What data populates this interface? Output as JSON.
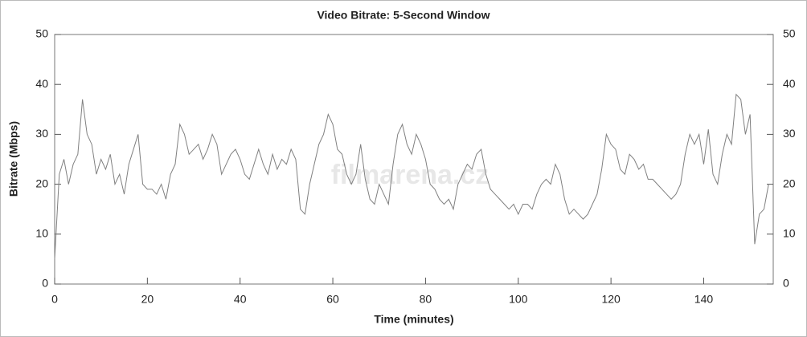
{
  "chart_data": {
    "type": "line",
    "title": "Video Bitrate: 5-Second Window",
    "xlabel": "Time (minutes)",
    "ylabel": "Bitrate (Mbps)",
    "watermark": "filmarena.cz",
    "x": [
      0,
      1,
      2,
      3,
      4,
      5,
      6,
      7,
      8,
      9,
      10,
      11,
      12,
      13,
      14,
      15,
      16,
      17,
      18,
      19,
      20,
      21,
      22,
      23,
      24,
      25,
      26,
      27,
      28,
      29,
      30,
      31,
      32,
      33,
      34,
      35,
      36,
      37,
      38,
      39,
      40,
      41,
      42,
      43,
      44,
      45,
      46,
      47,
      48,
      49,
      50,
      51,
      52,
      53,
      54,
      55,
      56,
      57,
      58,
      59,
      60,
      61,
      62,
      63,
      64,
      65,
      66,
      67,
      68,
      69,
      70,
      71,
      72,
      73,
      74,
      75,
      76,
      77,
      78,
      79,
      80,
      81,
      82,
      83,
      84,
      85,
      86,
      87,
      88,
      89,
      90,
      91,
      92,
      93,
      94,
      95,
      96,
      97,
      98,
      99,
      100,
      101,
      102,
      103,
      104,
      105,
      106,
      107,
      108,
      109,
      110,
      111,
      112,
      113,
      114,
      115,
      116,
      117,
      118,
      119,
      120,
      121,
      122,
      123,
      124,
      125,
      126,
      127,
      128,
      129,
      130,
      131,
      132,
      133,
      134,
      135,
      136,
      137,
      138,
      139,
      140,
      141,
      142,
      143,
      144,
      145,
      146,
      147,
      148,
      149,
      150,
      151,
      152,
      153,
      154
    ],
    "series": [
      {
        "name": "Bitrate",
        "color": "#808080",
        "values": [
          5,
          22,
          25,
          20,
          24,
          26,
          37,
          30,
          28,
          22,
          25,
          23,
          26,
          20,
          22,
          18,
          24,
          27,
          30,
          20,
          19,
          19,
          18,
          20,
          17,
          22,
          24,
          32,
          30,
          26,
          27,
          28,
          25,
          27,
          30,
          28,
          22,
          24,
          26,
          27,
          25,
          22,
          21,
          24,
          27,
          24,
          22,
          26,
          23,
          25,
          24,
          27,
          25,
          15,
          14,
          20,
          24,
          28,
          30,
          34,
          32,
          27,
          26,
          22,
          20,
          22,
          28,
          21,
          17,
          16,
          20,
          18,
          16,
          24,
          30,
          32,
          28,
          26,
          30,
          28,
          25,
          20,
          19,
          17,
          16,
          17,
          15,
          20,
          22,
          24,
          23,
          26,
          27,
          22,
          19,
          18,
          17,
          16,
          15,
          16,
          14,
          16,
          16,
          15,
          18,
          20,
          21,
          20,
          24,
          22,
          17,
          14,
          15,
          14,
          13,
          14,
          16,
          18,
          23,
          30,
          28,
          27,
          23,
          22,
          26,
          25,
          23,
          24,
          21,
          21,
          20,
          19,
          18,
          17,
          18,
          20,
          26,
          30,
          28,
          30,
          24,
          31,
          22,
          20,
          26,
          30,
          28,
          38,
          37,
          30,
          34,
          8,
          14,
          15,
          20
        ]
      }
    ],
    "xlim": [
      0,
      155
    ],
    "xticks": [
      0,
      20,
      40,
      60,
      80,
      100,
      120,
      140
    ],
    "ylim": [
      0,
      50
    ],
    "yticks": [
      0,
      10,
      20,
      30,
      40,
      50
    ],
    "y2lim": [
      0,
      50
    ],
    "y2ticks": [
      0,
      10,
      20,
      30,
      40,
      50
    ]
  }
}
